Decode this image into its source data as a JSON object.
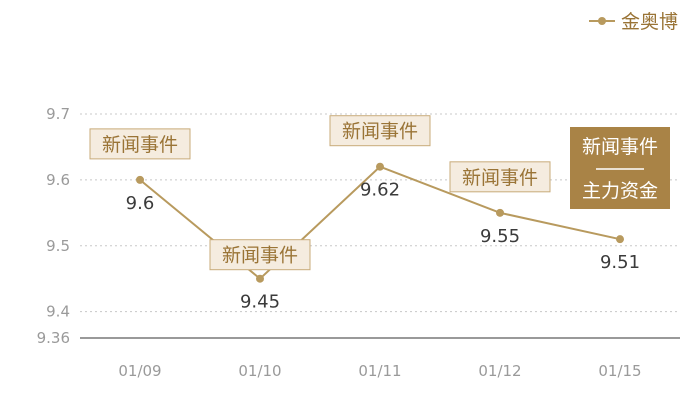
{
  "colors": {
    "line": "#b89a5e",
    "event_box_fill": "#f5ecdf",
    "event_box_stroke": "#c8ab7a",
    "event_text": "#9a7436",
    "highlight_fill": "#a98346",
    "highlight_text": "#ffffff",
    "grid": "#c8c8c8",
    "axis": "#333333"
  },
  "legend": {
    "label": "金奥博"
  },
  "chart_data": {
    "type": "line",
    "categories": [
      "01/09",
      "01/10",
      "01/11",
      "01/12",
      "01/15"
    ],
    "series": [
      {
        "name": "金奥博",
        "values": [
          9.6,
          9.45,
          9.62,
          9.55,
          9.51
        ]
      }
    ],
    "data_labels": [
      "9.6",
      "9.45",
      "9.62",
      "9.55",
      "9.51"
    ],
    "yticks": [
      "9.7",
      "9.6",
      "9.5",
      "9.4",
      "9.36"
    ],
    "ylim": [
      9.36,
      9.7
    ],
    "grid": "horizontal dotted",
    "legend_position": "top-right",
    "events": [
      {
        "category": "01/09",
        "label": "新闻事件"
      },
      {
        "category": "01/10",
        "label": "新闻事件"
      },
      {
        "category": "01/11",
        "label": "新闻事件"
      },
      {
        "category": "01/12",
        "label": "新闻事件"
      }
    ],
    "highlight_event": {
      "category": "01/15",
      "line1": "新闻事件",
      "line2": "主力资金"
    }
  }
}
